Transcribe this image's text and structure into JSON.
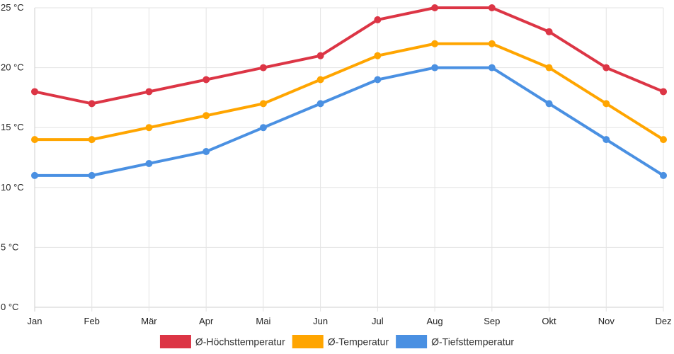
{
  "chart_data": {
    "type": "line",
    "categories": [
      "Jan",
      "Feb",
      "Mär",
      "Apr",
      "Mai",
      "Jun",
      "Jul",
      "Aug",
      "Sep",
      "Okt",
      "Nov",
      "Dez"
    ],
    "ylim": [
      0,
      25
    ],
    "yticks": [
      0,
      5,
      10,
      15,
      20,
      25
    ],
    "y_unit": "°C",
    "grid": true,
    "legend_position": "bottom",
    "series": [
      {
        "name": "Ø-Höchsttemperatur",
        "color": "#dc3545",
        "values": [
          18,
          17,
          18,
          19,
          20,
          21,
          24,
          25,
          25,
          23,
          20,
          18
        ]
      },
      {
        "name": "Ø-Temperatur",
        "color": "#ffa500",
        "values": [
          14,
          14,
          15,
          16,
          17,
          19,
          21,
          22,
          22,
          20,
          17,
          14
        ]
      },
      {
        "name": "Ø-Tiefsttemperatur",
        "color": "#4a90e2",
        "values": [
          11,
          11,
          12,
          13,
          15,
          17,
          19,
          20,
          20,
          17,
          14,
          11
        ]
      }
    ]
  }
}
